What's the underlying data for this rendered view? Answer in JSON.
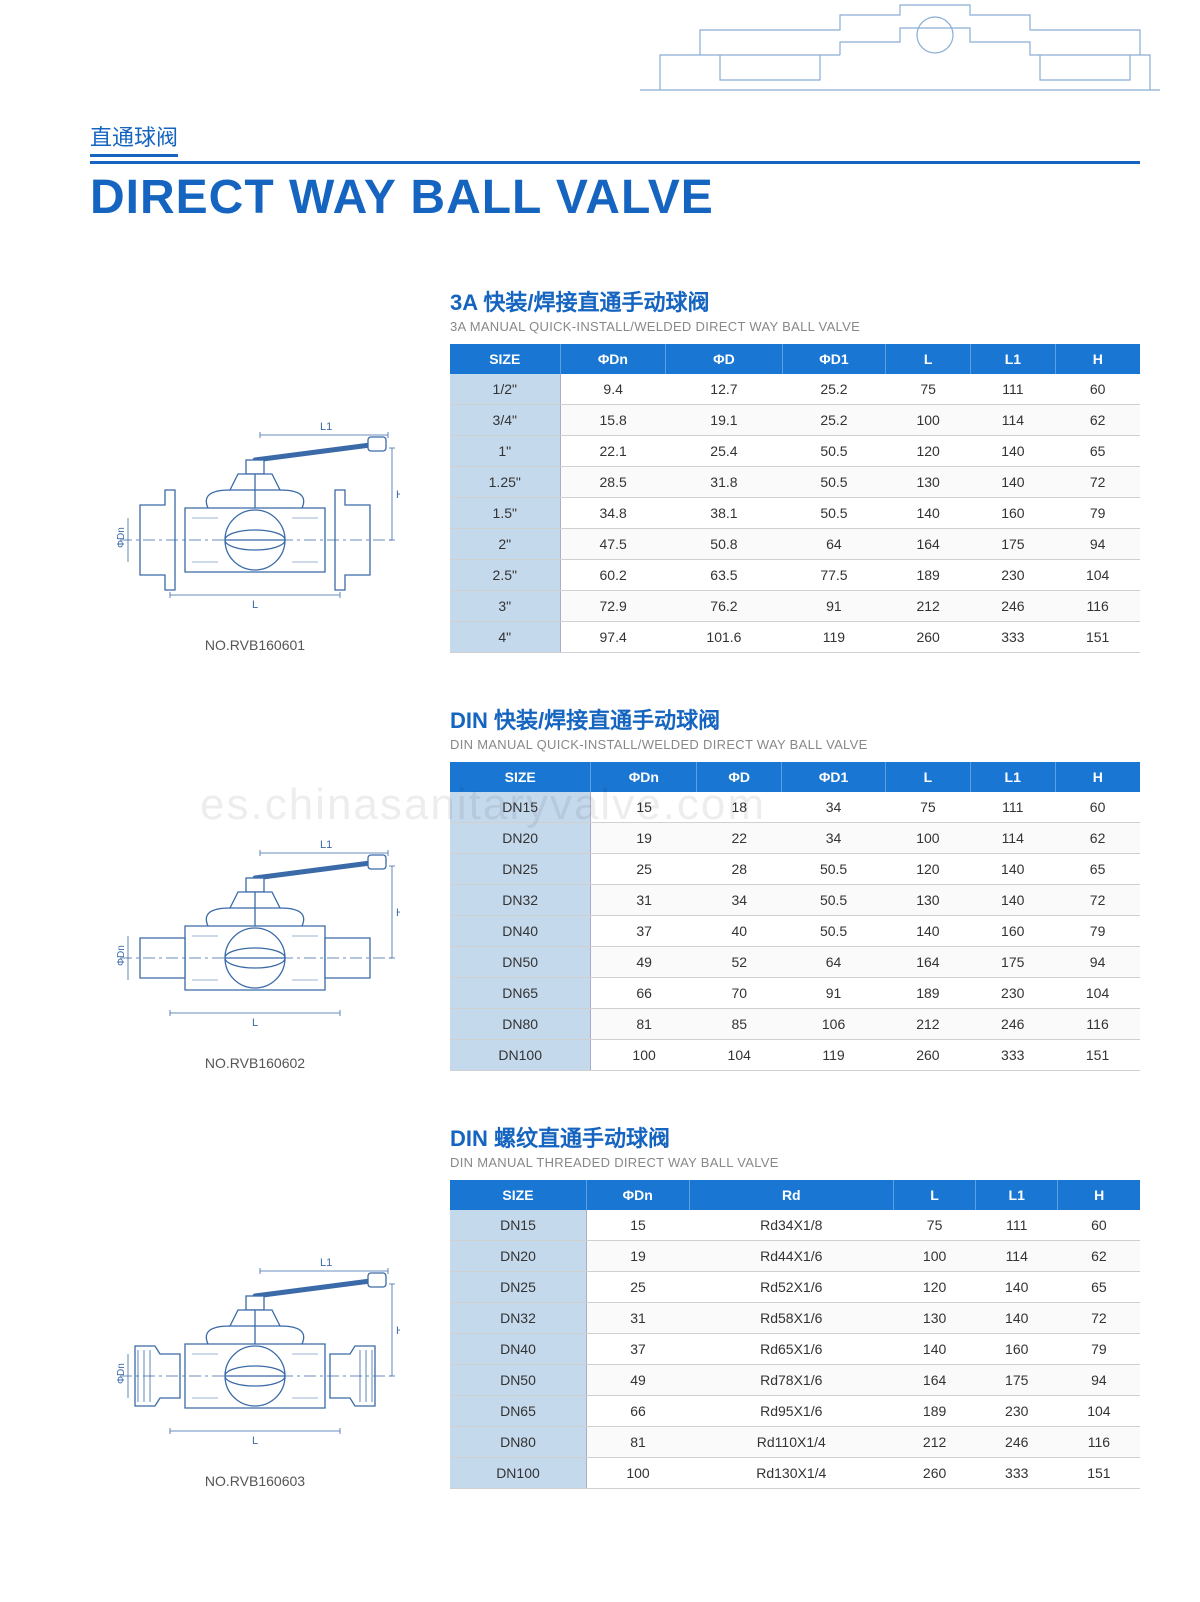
{
  "page_title_cn": "直通球阀",
  "page_title_en": "DIRECT WAY BALL VALVE",
  "watermark": "es.chinasanitaryvalve.com",
  "colors": {
    "brand_blue": "#1565c0",
    "table_header": "#1976d2",
    "size_col_bg": "#c5d9ed",
    "grid_line": "#d0d0d0",
    "subtitle_grey": "#888"
  },
  "sections": [
    {
      "part_no": "NO.RVB160601",
      "title_cn": "3A 快装/焊接直通手动球阀",
      "title_en": "3A MANUAL QUICK-INSTALL/WELDED DIRECT WAY BALL VALVE",
      "columns": [
        "SIZE",
        "ΦDn",
        "ΦD",
        "ΦD1",
        "L",
        "L1",
        "H"
      ],
      "rows": [
        [
          "1/2\"",
          "9.4",
          "12.7",
          "25.2",
          "75",
          "111",
          "60"
        ],
        [
          "3/4\"",
          "15.8",
          "19.1",
          "25.2",
          "100",
          "114",
          "62"
        ],
        [
          "1\"",
          "22.1",
          "25.4",
          "50.5",
          "120",
          "140",
          "65"
        ],
        [
          "1.25\"",
          "28.5",
          "31.8",
          "50.5",
          "130",
          "140",
          "72"
        ],
        [
          "1.5\"",
          "34.8",
          "38.1",
          "50.5",
          "140",
          "160",
          "79"
        ],
        [
          "2\"",
          "47.5",
          "50.8",
          "64",
          "164",
          "175",
          "94"
        ],
        [
          "2.5\"",
          "60.2",
          "63.5",
          "77.5",
          "189",
          "230",
          "104"
        ],
        [
          "3\"",
          "72.9",
          "76.2",
          "91",
          "212",
          "246",
          "116"
        ],
        [
          "4\"",
          "97.4",
          "101.6",
          "119",
          "260",
          "333",
          "151"
        ]
      ]
    },
    {
      "part_no": "NO.RVB160602",
      "title_cn": "DIN 快装/焊接直通手动球阀",
      "title_en": "DIN MANUAL QUICK-INSTALL/WELDED DIRECT WAY BALL VALVE",
      "columns": [
        "SIZE",
        "ΦDn",
        "ΦD",
        "ΦD1",
        "L",
        "L1",
        "H"
      ],
      "rows": [
        [
          "DN15",
          "15",
          "18",
          "34",
          "75",
          "111",
          "60"
        ],
        [
          "DN20",
          "19",
          "22",
          "34",
          "100",
          "114",
          "62"
        ],
        [
          "DN25",
          "25",
          "28",
          "50.5",
          "120",
          "140",
          "65"
        ],
        [
          "DN32",
          "31",
          "34",
          "50.5",
          "130",
          "140",
          "72"
        ],
        [
          "DN40",
          "37",
          "40",
          "50.5",
          "140",
          "160",
          "79"
        ],
        [
          "DN50",
          "49",
          "52",
          "64",
          "164",
          "175",
          "94"
        ],
        [
          "DN65",
          "66",
          "70",
          "91",
          "189",
          "230",
          "104"
        ],
        [
          "DN80",
          "81",
          "85",
          "106",
          "212",
          "246",
          "116"
        ],
        [
          "DN100",
          "100",
          "104",
          "119",
          "260",
          "333",
          "151"
        ]
      ]
    },
    {
      "part_no": "NO.RVB160603",
      "title_cn": "DIN 螺纹直通手动球阀",
      "title_en": "DIN MANUAL THREADED DIRECT WAY BALL VALVE",
      "columns": [
        "SIZE",
        "ΦDn",
        "Rd",
        "L",
        "L1",
        "H"
      ],
      "rows": [
        [
          "DN15",
          "15",
          "Rd34X1/8",
          "75",
          "111",
          "60"
        ],
        [
          "DN20",
          "19",
          "Rd44X1/6",
          "100",
          "114",
          "62"
        ],
        [
          "DN25",
          "25",
          "Rd52X1/6",
          "120",
          "140",
          "65"
        ],
        [
          "DN32",
          "31",
          "Rd58X1/6",
          "130",
          "140",
          "72"
        ],
        [
          "DN40",
          "37",
          "Rd65X1/6",
          "140",
          "160",
          "79"
        ],
        [
          "DN50",
          "49",
          "Rd78X1/6",
          "164",
          "175",
          "94"
        ],
        [
          "DN65",
          "66",
          "Rd95X1/6",
          "189",
          "230",
          "104"
        ],
        [
          "DN80",
          "81",
          "Rd110X1/4",
          "212",
          "246",
          "116"
        ],
        [
          "DN100",
          "100",
          "Rd130X1/4",
          "260",
          "333",
          "151"
        ]
      ]
    }
  ]
}
